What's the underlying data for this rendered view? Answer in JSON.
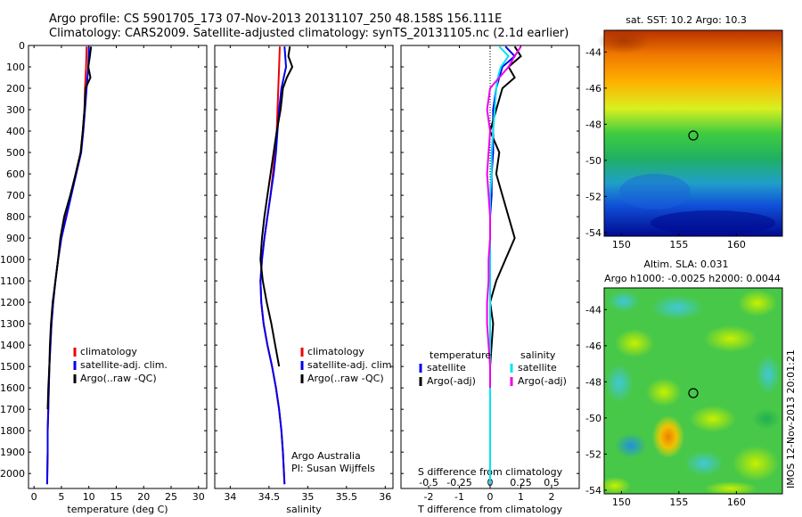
{
  "header": {
    "line1": "Argo profile: CS 5901705_173 07-Nov-2013 20131107_250 48.158S 156.111E",
    "line2": "Climatology: CARS2009. Satellite-adjusted climatology: synTS_20131105.nc (2.1d earlier)"
  },
  "colors": {
    "red": "#ee0000",
    "blue": "#0000ee",
    "black": "#000000",
    "cyan": "#00e5ee",
    "magenta": "#ee00ee"
  },
  "chart_data": [
    {
      "type": "line",
      "id": "temperature",
      "xlabel": "temperature (deg C)",
      "xlim": [
        -1,
        31.5
      ],
      "ylim": [
        0,
        2070
      ],
      "y_reversed": true,
      "xticks": [
        0,
        5,
        10,
        15,
        20,
        25,
        30
      ],
      "yticks": [
        0,
        100,
        200,
        300,
        400,
        500,
        600,
        700,
        800,
        900,
        1000,
        1100,
        1200,
        1300,
        1400,
        1500,
        1600,
        1700,
        1800,
        1900,
        2000
      ],
      "legend": [
        "climatology",
        "satellite-adj. clim.",
        "Argo(..raw -QC)"
      ],
      "series": [
        {
          "name": "climatology",
          "color": "#ee0000",
          "x": [
            9.6,
            9.5,
            9.3,
            9.2,
            8.9,
            8.5,
            7.6,
            6.7,
            5.8,
            5.0,
            4.4,
            3.9,
            3.5,
            3.2,
            3.0,
            2.8,
            2.7,
            2.6,
            2.5,
            2.5,
            2.4
          ],
          "y": [
            5,
            100,
            200,
            300,
            400,
            500,
            600,
            700,
            800,
            900,
            1000,
            1100,
            1200,
            1300,
            1400,
            1500,
            1600,
            1700,
            1800,
            1900,
            2050
          ]
        },
        {
          "name": "satellite-adj. clim.",
          "color": "#0000ee",
          "x": [
            10.0,
            9.9,
            9.6,
            9.3,
            9.0,
            8.6,
            7.7,
            6.8,
            5.9,
            5.0,
            4.4,
            3.9,
            3.5,
            3.2,
            3.0,
            2.8,
            2.7,
            2.6,
            2.5,
            2.5,
            2.4
          ],
          "y": [
            5,
            100,
            200,
            300,
            400,
            500,
            600,
            700,
            800,
            900,
            1000,
            1100,
            1200,
            1300,
            1400,
            1500,
            1600,
            1700,
            1800,
            1900,
            2050
          ]
        },
        {
          "name": "Argo(..raw -QC)",
          "color": "#000000",
          "x": [
            10.4,
            10.2,
            9.9,
            10.3,
            9.4,
            9.2,
            8.9,
            8.5,
            7.6,
            6.6,
            5.5,
            4.8,
            4.4,
            3.9,
            3.4,
            3.1,
            2.9,
            2.8,
            2.6,
            2.5
          ],
          "y": [
            5,
            50,
            100,
            150,
            200,
            300,
            400,
            500,
            600,
            700,
            800,
            900,
            1000,
            1100,
            1200,
            1300,
            1400,
            1500,
            1600,
            1700
          ]
        }
      ]
    },
    {
      "type": "line",
      "id": "salinity",
      "xlabel": "salinity",
      "xlim": [
        33.8,
        36.1
      ],
      "ylim": [
        0,
        2070
      ],
      "y_reversed": true,
      "xticks": [
        34,
        34.5,
        35,
        35.5,
        36
      ],
      "legend": [
        "climatology",
        "satellite-adj. clim.",
        "Argo(..raw -QC)"
      ],
      "annotation": [
        "Argo Australia",
        "PI: Susan Wijffels"
      ],
      "series": [
        {
          "name": "climatology",
          "color": "#ee0000",
          "x": [
            34.64,
            34.63,
            34.62,
            34.61,
            34.6,
            34.58,
            34.55,
            34.52,
            34.48,
            34.44,
            34.41,
            34.39,
            34.4,
            34.43,
            34.48,
            34.54,
            34.59,
            34.63,
            34.66,
            34.68,
            34.7
          ],
          "y": [
            5,
            100,
            200,
            300,
            400,
            500,
            600,
            700,
            800,
            900,
            1000,
            1100,
            1200,
            1300,
            1400,
            1500,
            1600,
            1700,
            1800,
            1900,
            2050
          ]
        },
        {
          "name": "satellite-adj. clim.",
          "color": "#0000ee",
          "x": [
            34.7,
            34.72,
            34.66,
            34.63,
            34.61,
            34.59,
            34.56,
            34.52,
            34.48,
            34.44,
            34.41,
            34.39,
            34.4,
            34.43,
            34.48,
            34.54,
            34.59,
            34.63,
            34.66,
            34.68,
            34.7
          ],
          "y": [
            5,
            100,
            200,
            300,
            400,
            500,
            600,
            700,
            800,
            900,
            1000,
            1100,
            1200,
            1300,
            1400,
            1500,
            1600,
            1700,
            1800,
            1900,
            2050
          ]
        },
        {
          "name": "Argo(..raw -QC)",
          "color": "#000000",
          "x": [
            34.77,
            34.75,
            34.8,
            34.73,
            34.68,
            34.65,
            34.6,
            34.56,
            34.52,
            34.48,
            34.44,
            34.41,
            34.39,
            34.42,
            34.47,
            34.53,
            34.58,
            34.63
          ],
          "y": [
            5,
            50,
            100,
            150,
            200,
            300,
            400,
            500,
            600,
            700,
            800,
            900,
            1000,
            1100,
            1200,
            1300,
            1400,
            1500
          ]
        }
      ]
    },
    {
      "type": "line",
      "id": "difference",
      "xlabel": "T difference from climatology",
      "xlabel_top": "S difference from climatology",
      "xlim": [
        -2.9,
        2.9
      ],
      "ylim": [
        0,
        2070
      ],
      "y_reversed": true,
      "xticks": [
        -2,
        -1,
        0,
        1,
        2
      ],
      "xticks_s": [
        -0.5,
        -0.25,
        0,
        0.25,
        0.5
      ],
      "legend_t_title": "temperature",
      "legend_s_title": "salinity",
      "legend": [
        "satellite",
        "Argo(-adj)",
        "satellite",
        "Argo(-adj)"
      ],
      "series": [
        {
          "name": "satellite",
          "group": "temperature",
          "color": "#0000ee",
          "x": [
            0.5,
            0.8,
            0.4,
            0.3,
            0.2,
            0.1,
            0.1,
            0.1,
            0.05,
            0.05,
            0.0,
            0.0,
            0.0,
            0.0,
            0.0,
            0.0,
            0.0,
            0.0,
            0.0,
            0.0
          ],
          "y": [
            5,
            50,
            100,
            150,
            200,
            300,
            400,
            500,
            600,
            700,
            800,
            900,
            1000,
            1100,
            1200,
            1300,
            1400,
            1500,
            1600,
            2050
          ]
        },
        {
          "name": "Argo(-adj)",
          "group": "temperature",
          "color": "#000000",
          "x": [
            0.8,
            1.0,
            0.6,
            0.8,
            0.4,
            0.2,
            0.0,
            0.3,
            0.2,
            0.4,
            0.6,
            0.8,
            0.5,
            0.2,
            0.0,
            0.1,
            0.05,
            0.0,
            0.0,
            0.0
          ],
          "y": [
            5,
            50,
            100,
            150,
            200,
            300,
            400,
            500,
            600,
            700,
            800,
            900,
            1000,
            1100,
            1200,
            1300,
            1400,
            1500,
            1600,
            1700
          ]
        },
        {
          "name": "satellite",
          "group": "salinity",
          "color": "#00e5ee",
          "x": [
            0.3,
            0.6,
            0.35,
            0.25,
            0.2,
            0.15,
            0.1,
            0.05,
            0.05,
            0.0,
            0.0,
            0.0,
            0.0,
            0.0,
            0.0,
            0.0,
            0.0,
            0.0,
            0.0,
            0.0
          ],
          "y": [
            5,
            50,
            100,
            150,
            200,
            300,
            400,
            500,
            600,
            700,
            800,
            900,
            1000,
            1100,
            1200,
            1300,
            1400,
            1500,
            1600,
            2050
          ]
        },
        {
          "name": "Argo(-adj)",
          "group": "salinity",
          "color": "#ee00ee",
          "x": [
            1.0,
            0.8,
            0.6,
            0.3,
            0.0,
            -0.1,
            0.0,
            -0.05,
            -0.1,
            -0.05,
            0.0,
            0.0,
            -0.05,
            -0.05,
            -0.1,
            -0.1,
            -0.05,
            0.0,
            0.0
          ],
          "y": [
            5,
            50,
            100,
            150,
            200,
            300,
            400,
            500,
            600,
            700,
            800,
            900,
            1000,
            1100,
            1200,
            1300,
            1400,
            1500,
            1600
          ]
        }
      ]
    },
    {
      "type": "heatmap",
      "id": "sst_map",
      "title": "sat. SST: 10.2 Argo: 10.3",
      "xlim": [
        148.5,
        164
      ],
      "ylim": [
        -54.2,
        -42.8
      ],
      "xticks": [
        150,
        155,
        160
      ],
      "yticks": [
        -44,
        -46,
        -48,
        -50,
        -52,
        -54
      ],
      "marker": {
        "lon": 156.111,
        "lat": -48.158
      }
    },
    {
      "type": "heatmap",
      "id": "sla_map",
      "title": "Altim. SLA: 0.031",
      "subtitle": "Argo h1000: -0.0025 h2000: 0.0044",
      "xlim": [
        148.5,
        164
      ],
      "ylim": [
        -54.2,
        -42.8
      ],
      "xticks": [
        150,
        155,
        160
      ],
      "yticks": [
        -44,
        -46,
        -48,
        -50,
        -52,
        -54
      ],
      "marker": {
        "lon": 156.111,
        "lat": -48.158
      }
    }
  ],
  "watermark": "IMOS 12-Nov-2013 20:01:21"
}
